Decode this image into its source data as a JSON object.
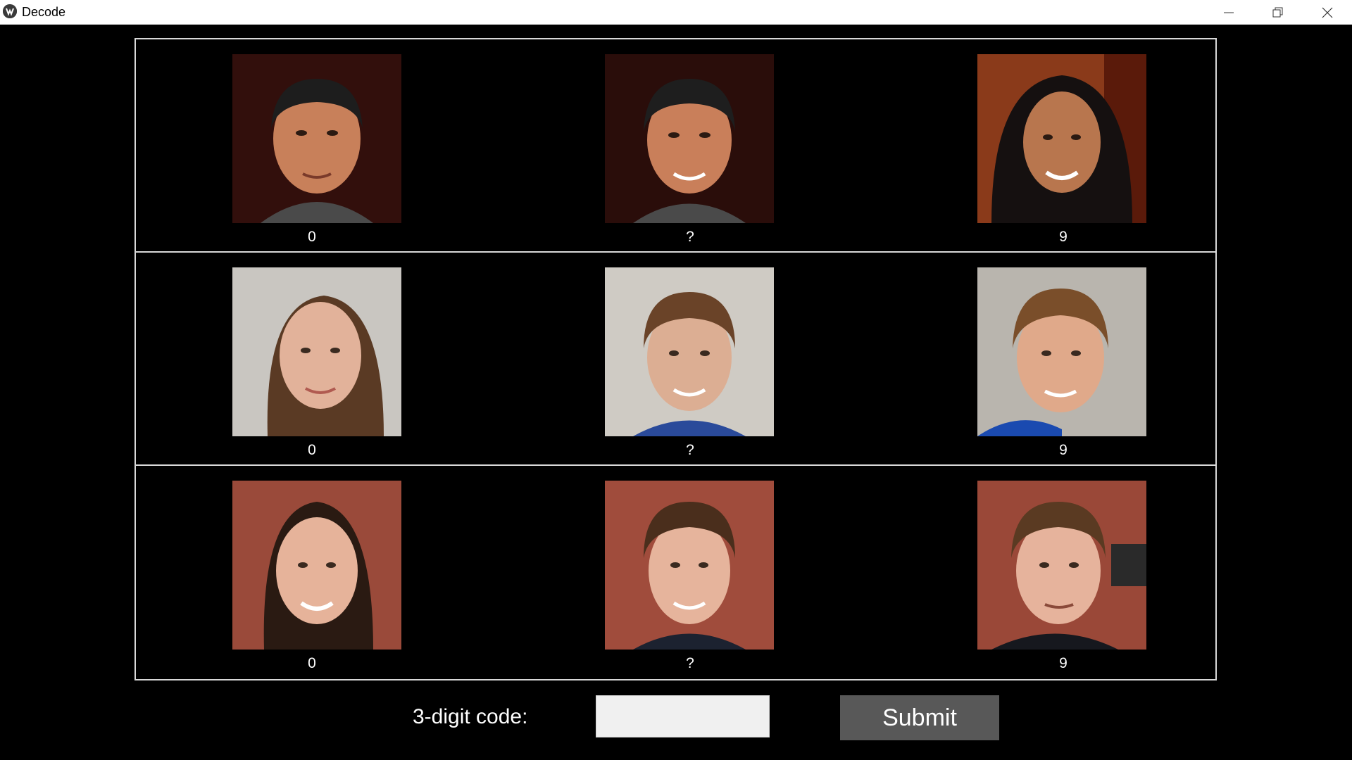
{
  "window": {
    "title": "Decode"
  },
  "grid": {
    "rows": [
      {
        "cells": [
          {
            "label": "0",
            "photo": "portrait-man-short-dark-hair-dark-red-background"
          },
          {
            "label": "?",
            "photo": "portrait-short-dark-hair-dark-red-background"
          },
          {
            "label": "9",
            "photo": "portrait-woman-long-dark-hair-orange-background"
          }
        ]
      },
      {
        "cells": [
          {
            "label": "0",
            "photo": "portrait-woman-long-brown-hair-grey-background"
          },
          {
            "label": "?",
            "photo": "portrait-woman-short-brown-hair-grey-background"
          },
          {
            "label": "9",
            "photo": "portrait-man-short-brown-hair-grey-background"
          }
        ]
      },
      {
        "cells": [
          {
            "label": "0",
            "photo": "portrait-woman-dark-hair-red-rock-background"
          },
          {
            "label": "?",
            "photo": "portrait-woman-short-hair-red-rock-background"
          },
          {
            "label": "9",
            "photo": "portrait-man-short-hair-red-rock-background"
          }
        ]
      }
    ]
  },
  "form": {
    "code_label": "3-digit code:",
    "code_value": "",
    "code_placeholder": "",
    "submit_label": "Submit"
  },
  "colors": {
    "background": "#000000",
    "grid_border": "#d9d9d9",
    "button_bg": "#585858",
    "input_bg": "#f0f0f0"
  }
}
